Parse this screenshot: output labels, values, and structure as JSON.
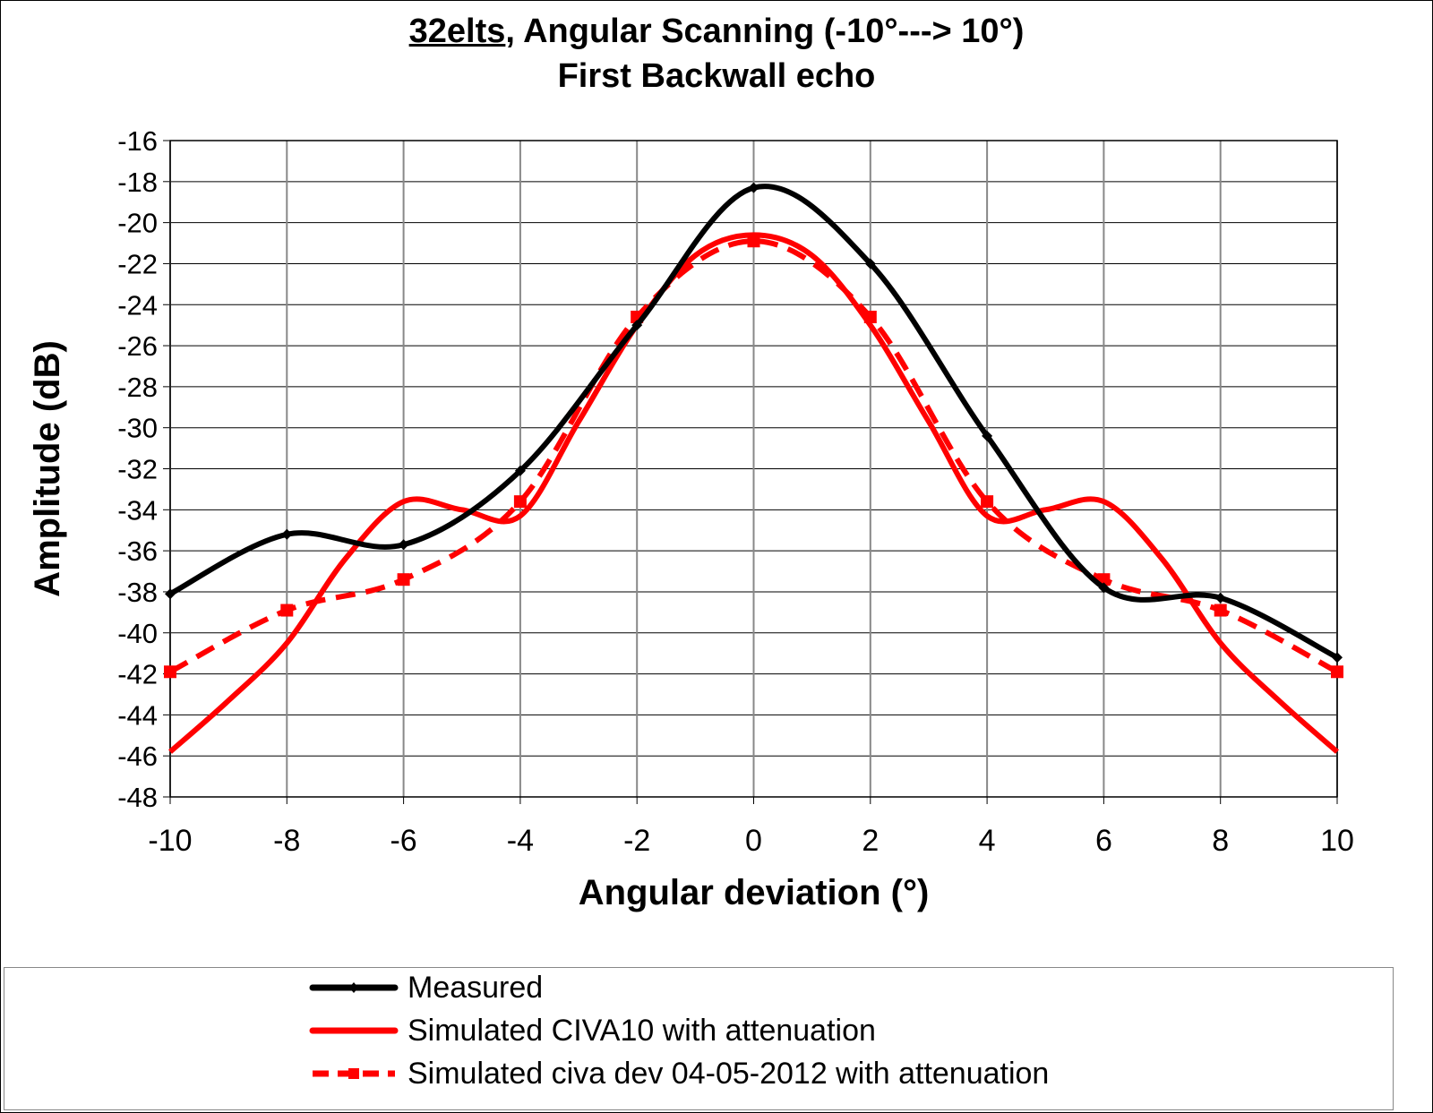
{
  "chart_data": {
    "type": "line",
    "title_underlined": "32elts",
    "title_rest": ", Angular Scanning (-10°---> 10°)",
    "subtitle": "First Backwall echo",
    "xlabel": "Angular deviation (°)",
    "ylabel": "Amplitude (dB)",
    "xlim": [
      -10,
      10
    ],
    "ylim": [
      -48,
      -16
    ],
    "xticks": [
      -10,
      -8,
      -6,
      -4,
      -2,
      0,
      2,
      4,
      6,
      8,
      10
    ],
    "yticks": [
      -16,
      -18,
      -20,
      -22,
      -24,
      -26,
      -28,
      -30,
      -32,
      -34,
      -36,
      -38,
      -40,
      -42,
      -44,
      -46,
      -48
    ],
    "grid": true,
    "legend_position": "bottom",
    "series": [
      {
        "name": "Measured",
        "color": "#000000",
        "style": "solid",
        "marker": "diamond",
        "x": [
          -10,
          -8,
          -6,
          -4,
          -2,
          0,
          2,
          4,
          6,
          8,
          10
        ],
        "y": [
          -38.1,
          -35.2,
          -35.7,
          -32.1,
          -25.0,
          -18.3,
          -22.0,
          -30.4,
          -37.8,
          -38.3,
          -41.2
        ]
      },
      {
        "name": "Simulated CIVA10 with attenuation",
        "color": "#ff0000",
        "style": "solid",
        "marker": "none",
        "x": [
          -10,
          -9,
          -8,
          -7,
          -6,
          -5,
          -4,
          -3,
          -2,
          -1,
          0,
          1,
          2,
          3,
          4,
          5,
          6,
          7,
          8,
          9,
          10
        ],
        "y": [
          -45.8,
          -43.3,
          -40.5,
          -36.4,
          -33.6,
          -34.0,
          -34.3,
          -29.7,
          -25.0,
          -21.6,
          -20.6,
          -21.6,
          -25.0,
          -29.7,
          -34.3,
          -34.0,
          -33.6,
          -36.4,
          -40.5,
          -43.3,
          -45.8
        ]
      },
      {
        "name": "Simulated civa dev 04-05-2012 with attenuation",
        "color": "#ff0000",
        "style": "dashed",
        "marker": "square",
        "x": [
          -10,
          -8,
          -6,
          -4,
          -2,
          0,
          2,
          4,
          6,
          8,
          10
        ],
        "y": [
          -41.9,
          -38.9,
          -37.4,
          -33.6,
          -24.6,
          -20.9,
          -24.6,
          -33.6,
          -37.4,
          -38.9,
          -41.9
        ]
      }
    ]
  }
}
